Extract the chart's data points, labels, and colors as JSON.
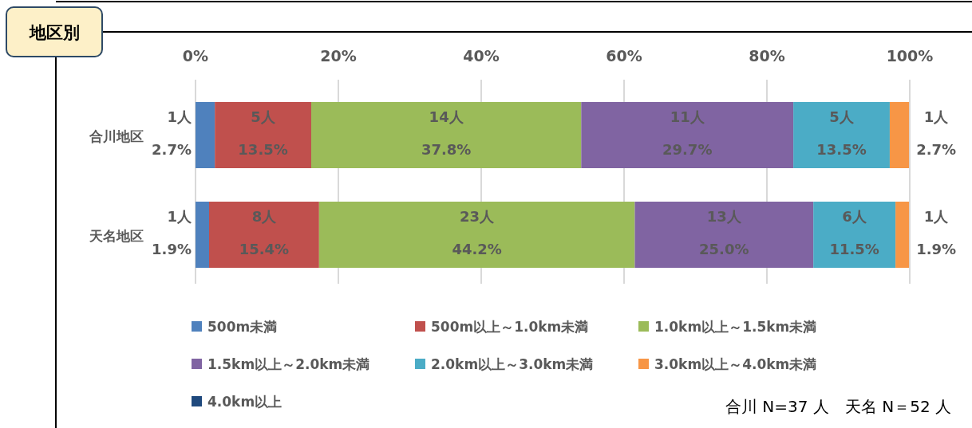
{
  "chart_data": {
    "type": "bar",
    "orientation": "horizontal",
    "stacked": true,
    "title": "地区別",
    "categories": [
      "合川地区",
      "天名地区"
    ],
    "xlim": [
      0,
      100
    ],
    "xticks": [
      {
        "value": 0,
        "label": "0%"
      },
      {
        "value": 20,
        "label": "20%"
      },
      {
        "value": 40,
        "label": "40%"
      },
      {
        "value": 60,
        "label": "60%"
      },
      {
        "value": 80,
        "label": "80%"
      },
      {
        "value": 100,
        "label": "100%"
      }
    ],
    "grid": "x",
    "legend": "bottom",
    "series": [
      {
        "name": "500m未満",
        "color": "#4f81bd",
        "values": [
          2.7,
          1.9
        ],
        "value_labels": [
          "1人\n2.7%",
          "1人\n1.9%"
        ]
      },
      {
        "name": "500m以上～1.0km未満",
        "color": "#c0504d",
        "values": [
          13.5,
          15.4
        ],
        "value_labels": [
          "5人\n13.5%",
          "8人\n15.4%"
        ]
      },
      {
        "name": "1.0km以上～1.5km未満",
        "color": "#9bbb59",
        "values": [
          37.8,
          44.2
        ],
        "value_labels": [
          "14人\n37.8%",
          "23人\n44.2%"
        ]
      },
      {
        "name": "1.5km以上～2.0km未満",
        "color": "#8064a2",
        "values": [
          29.7,
          25.0
        ],
        "value_labels": [
          "11人\n29.7%",
          "13人\n25.0%"
        ]
      },
      {
        "name": "2.0km以上～3.0km未満",
        "color": "#4bacc6",
        "values": [
          13.5,
          11.5
        ],
        "value_labels": [
          "5人\n13.5%",
          "6人\n11.5%"
        ]
      },
      {
        "name": "3.0km以上～4.0km未満",
        "color": "#f79646",
        "values": [
          2.7,
          1.9
        ],
        "value_labels": [
          "1人\n2.7%",
          "1人\n1.9%"
        ]
      },
      {
        "name": "4.0km以上",
        "color": "#1f497d",
        "values": [
          0,
          0
        ],
        "value_labels": [
          null,
          null
        ]
      }
    ],
    "annotations": [
      "合川 N=37 人　天名 N＝52 人"
    ]
  }
}
